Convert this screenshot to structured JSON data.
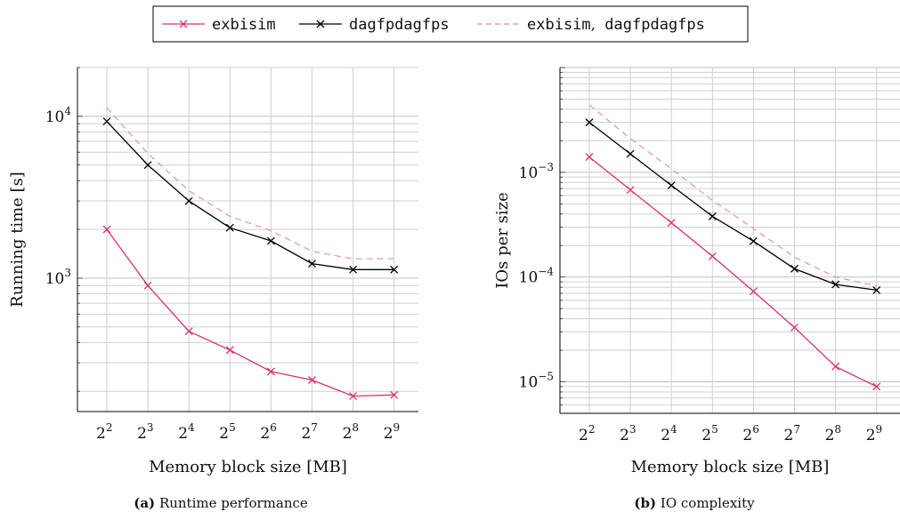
{
  "legend": {
    "entries": [
      {
        "label": "exbisim",
        "color": "#d6336c",
        "style": "solid-x"
      },
      {
        "label": "dagfpdagfps",
        "color": "#000000",
        "style": "solid-x"
      },
      {
        "label": "exbisim, dagfpdagfps",
        "color": "#e28aa6",
        "style": "dashed"
      }
    ]
  },
  "chart_data": [
    {
      "type": "line",
      "caption_tag": "(a)",
      "caption_text": "Runtime performance",
      "xlabel": "Memory block size [MB]",
      "ylabel": "Running time [s]",
      "x_base": "2",
      "x_exponents": [
        2,
        3,
        4,
        5,
        6,
        7,
        8,
        9
      ],
      "y_scale": "log",
      "ylim": [
        150,
        20000
      ],
      "y_ticks": [
        {
          "base": "10",
          "exp": "4",
          "value": 10000
        },
        {
          "base": "10",
          "exp": "3",
          "value": 1000
        }
      ],
      "grid": true,
      "series": [
        {
          "name": "exbisim",
          "color": "#d6336c",
          "dashed": false,
          "markers": true,
          "values": [
            2000,
            900,
            470,
            360,
            265,
            235,
            187,
            190
          ]
        },
        {
          "name": "dagfpdagfps",
          "color": "#000000",
          "dashed": false,
          "markers": true,
          "values": [
            9300,
            5000,
            3000,
            2050,
            1700,
            1230,
            1130,
            1130
          ]
        },
        {
          "name": "exbisim, dagfpdagfps",
          "color": "#e28aa6",
          "dashed": true,
          "markers": false,
          "values": [
            11300,
            5900,
            3470,
            2410,
            1965,
            1465,
            1317,
            1320
          ]
        }
      ]
    },
    {
      "type": "line",
      "caption_tag": "(b)",
      "caption_text": "IO complexity",
      "xlabel": "Memory block size [MB]",
      "ylabel": "IOs per size",
      "x_base": "2",
      "x_exponents": [
        2,
        3,
        4,
        5,
        6,
        7,
        8,
        9
      ],
      "y_scale": "log",
      "ylim": [
        5e-06,
        0.01
      ],
      "y_ticks": [
        {
          "base": "10",
          "exp": "−3",
          "value": 0.001
        },
        {
          "base": "10",
          "exp": "−4",
          "value": 0.0001
        },
        {
          "base": "10",
          "exp": "−5",
          "value": 1e-05
        }
      ],
      "grid": true,
      "series": [
        {
          "name": "exbisim",
          "color": "#d6336c",
          "dashed": false,
          "markers": true,
          "values": [
            0.0014,
            0.00068,
            0.00033,
            0.000158,
            7.3e-05,
            3.3e-05,
            1.4e-05,
            9e-06
          ]
        },
        {
          "name": "dagfpdagfps",
          "color": "#000000",
          "dashed": false,
          "markers": true,
          "values": [
            0.003,
            0.0015,
            0.00075,
            0.00038,
            0.00022,
            0.00012,
            8.5e-05,
            7.5e-05
          ]
        },
        {
          "name": "exbisim, dagfpdagfps",
          "color": "#e28aa6",
          "dashed": true,
          "markers": false,
          "values": [
            0.0044,
            0.0021,
            0.00108,
            0.00054,
            0.00029,
            0.000155,
            0.0001,
            8.2e-05
          ]
        }
      ]
    }
  ]
}
